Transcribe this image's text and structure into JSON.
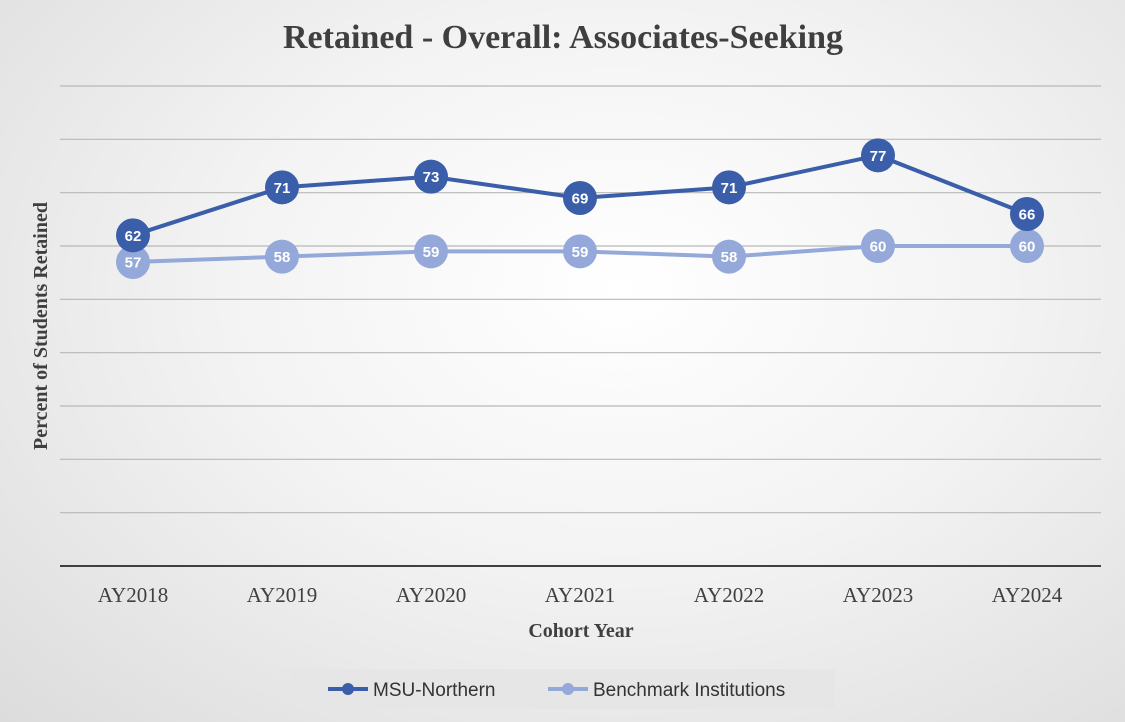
{
  "chart_data": {
    "type": "line",
    "title": "Retained - Overall: Associates-Seeking",
    "xlabel": "Cohort Year",
    "ylabel": "Percent of Students Retained",
    "categories": [
      "AY2018",
      "AY2019",
      "AY2020",
      "AY2021",
      "AY2022",
      "AY2023",
      "AY2024"
    ],
    "ylim": [
      0,
      90
    ],
    "y_gridline_step": 10,
    "grid": true,
    "y_tick_labels_shown": false,
    "legend_position": "bottom",
    "series": [
      {
        "name": "MSU-Northern",
        "values": [
          62,
          71,
          73,
          69,
          71,
          77,
          66
        ],
        "color": "#3a5ea9"
      },
      {
        "name": "Benchmark Institutions",
        "values": [
          57,
          58,
          59,
          59,
          58,
          60,
          60
        ],
        "color": "#94a9d9"
      }
    ]
  }
}
